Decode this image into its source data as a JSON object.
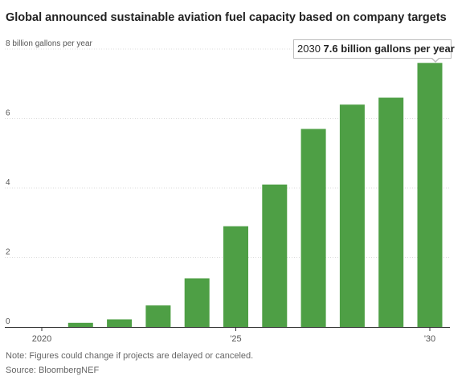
{
  "colors": {
    "bar": "#4e9f45",
    "grid": "#dddddd",
    "axis": "#333333"
  },
  "chart_data": {
    "type": "bar",
    "title": "Global announced sustainable aviation fuel capacity based on company targets",
    "ylabel": "8 billion gallons per year",
    "unit": "billion gallons per year",
    "ylim": [
      0,
      8
    ],
    "y_ticks": [
      {
        "value": 8,
        "label": "8 billion gallons per year"
      },
      {
        "value": 6,
        "label": "6"
      },
      {
        "value": 4,
        "label": "4"
      },
      {
        "value": 2,
        "label": "2"
      },
      {
        "value": 0,
        "label": "0"
      }
    ],
    "x_ticks": [
      {
        "year": 2020,
        "label": "2020"
      },
      {
        "year": 2025,
        "label": "'25"
      },
      {
        "year": 2030,
        "label": "'30"
      }
    ],
    "categories": [
      2020,
      2021,
      2022,
      2023,
      2024,
      2025,
      2026,
      2027,
      2028,
      2029,
      2030
    ],
    "values": [
      0,
      0.12,
      0.22,
      0.62,
      1.4,
      2.9,
      4.1,
      5.7,
      6.4,
      6.6,
      7.6
    ],
    "grid": true,
    "highlight": {
      "year_label": "2030",
      "value_label": "7.6 billion gallons per year"
    }
  },
  "footer": {
    "note": "Note: Figures could change if projects are delayed or canceled.",
    "source": "Source: BloombergNEF"
  }
}
